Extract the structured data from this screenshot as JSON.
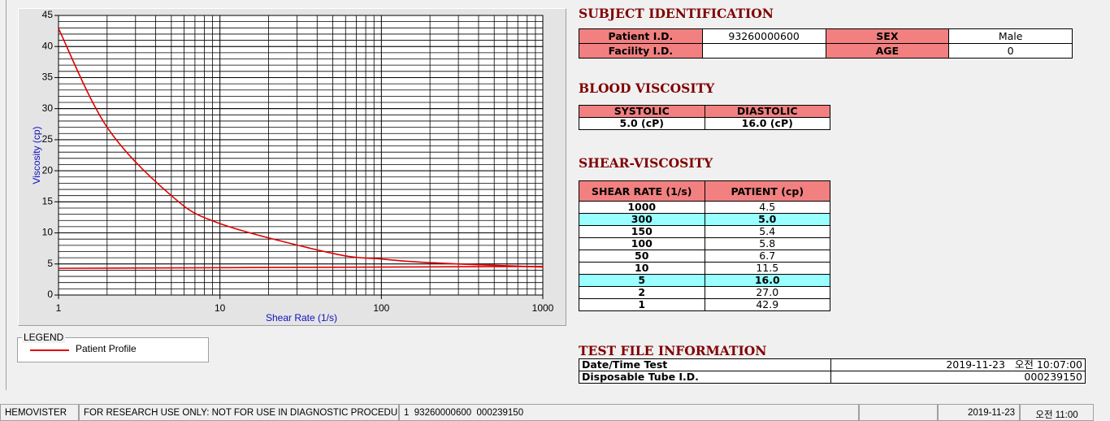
{
  "chart_data": {
    "type": "line",
    "xlabel": "Shear Rate (1/s)",
    "ylabel": "Viscosity (cp)",
    "xscale": "log",
    "xlim": [
      1,
      1000
    ],
    "xticks": [
      1,
      10,
      100,
      1000
    ],
    "ylim": [
      0,
      45
    ],
    "yticks": [
      0,
      5,
      10,
      15,
      20,
      25,
      30,
      35,
      40,
      45
    ],
    "grid": true,
    "series": [
      {
        "name": "Patient Profile",
        "color": "#e00000",
        "x": [
          1,
          2,
          5,
          10,
          50,
          100,
          150,
          300,
          1000
        ],
        "values": [
          42.9,
          27.0,
          16.0,
          11.5,
          6.7,
          5.8,
          5.4,
          5.0,
          4.5
        ]
      },
      {
        "color": "#e00000",
        "x": [
          1,
          1000
        ],
        "values": [
          4.3,
          4.6
        ]
      }
    ],
    "legend": {
      "title": "LEGEND"
    }
  },
  "subject_identification": {
    "title": "SUBJECT IDENTIFICATION",
    "fields": [
      {
        "label": "Patient I.D.",
        "value": "93260000600"
      },
      {
        "label": "SEX",
        "value": "Male"
      },
      {
        "label": "Facility I.D."
      },
      {
        "label": "AGE",
        "value": "0"
      }
    ]
  },
  "blood_viscosity": {
    "title": "BLOOD VISCOSITY",
    "headers": [
      "SYSTOLIC",
      "DIASTOLIC"
    ],
    "values": [
      "5.0 (cP)",
      "16.0 (cP)"
    ]
  },
  "shear_viscosity": {
    "title": "SHEAR-VISCOSITY",
    "headers": [
      "SHEAR RATE (1/s)",
      "PATIENT (cp)"
    ],
    "rows": [
      {
        "shear_rate": "1000",
        "patient": "4.5"
      },
      {
        "shear_rate": "300",
        "patient": "5.0",
        "highlight": true
      },
      {
        "shear_rate": "150",
        "patient": "5.4"
      },
      {
        "shear_rate": "100",
        "patient": "5.8"
      },
      {
        "shear_rate": "50",
        "patient": "6.7"
      },
      {
        "shear_rate": "10",
        "patient": "11.5"
      },
      {
        "shear_rate": "5",
        "patient": "16.0",
        "highlight": true
      },
      {
        "shear_rate": "2",
        "patient": "27.0"
      },
      {
        "shear_rate": "1",
        "patient": "42.9"
      }
    ]
  },
  "test_file": {
    "title": "TEST FILE INFORMATION",
    "rows": [
      {
        "label": "Date/Time Test",
        "value": "2019-11-23   오전 10:07:00"
      },
      {
        "label": "Disposable Tube I.D.",
        "value": "000239150"
      }
    ]
  },
  "status_bar": {
    "app": "HEMOVISTER",
    "notice": "FOR RESEARCH USE ONLY: NOT FOR USE IN DIAGNOSTIC PROCEDURES",
    "record": "1  93260000600  000239150",
    "date": "2019-11-23",
    "time": "오전 11:00"
  }
}
